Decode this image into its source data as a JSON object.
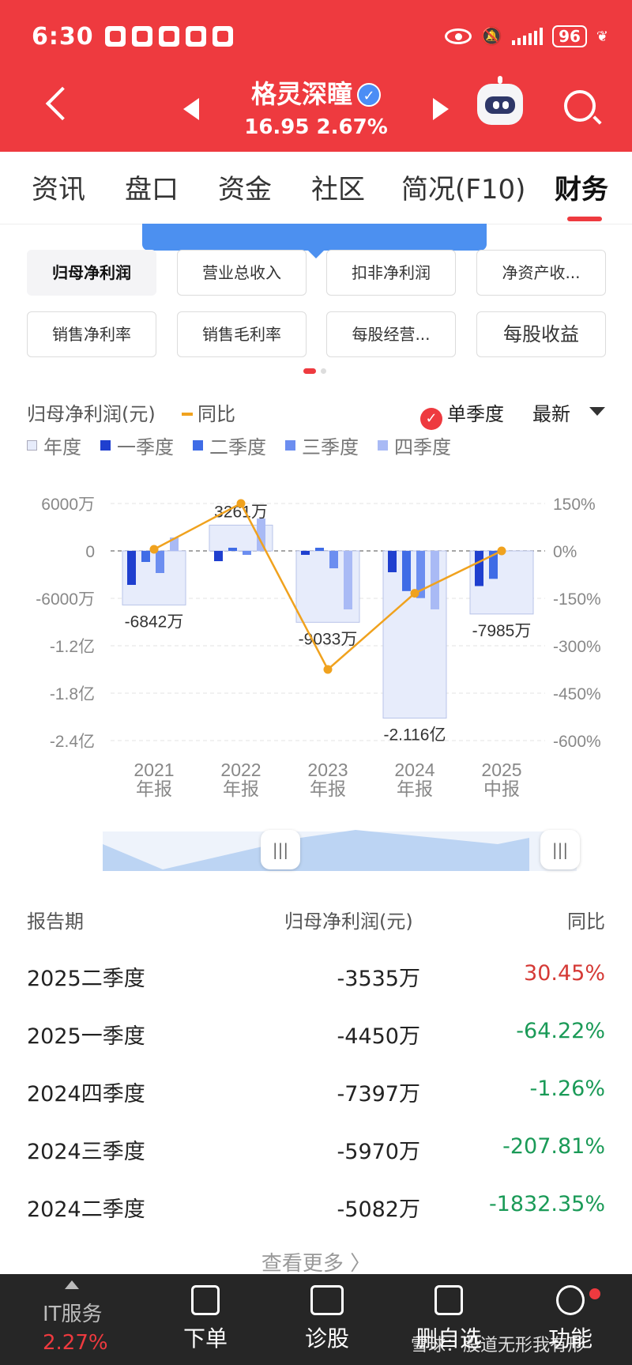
{
  "status_bar": {
    "time": "6:30",
    "battery": "96"
  },
  "header": {
    "stock_name": "格灵深瞳",
    "price": "16.95",
    "change_pct": "2.67%"
  },
  "tabs": [
    {
      "label": "资讯"
    },
    {
      "label": "盘口"
    },
    {
      "label": "资金"
    },
    {
      "label": "社区"
    },
    {
      "label": "简况(F10)"
    },
    {
      "label": "财务"
    }
  ],
  "metrics": [
    {
      "label": "归母净利润"
    },
    {
      "label": "营业总收入"
    },
    {
      "label": "扣非净利润"
    },
    {
      "label": "净资产收..."
    },
    {
      "label": "销售净利率"
    },
    {
      "label": "销售毛利率"
    },
    {
      "label": "每股经营..."
    },
    {
      "label": "每股收益"
    }
  ],
  "chart_header": {
    "title": "归母净利润(元)",
    "yoy_legend": "同比",
    "single_quarter": "单季度",
    "latest": "最新",
    "legend": [
      "年度",
      "一季度",
      "二季度",
      "三季度",
      "四季度"
    ]
  },
  "colors": {
    "annual": "#e7ecfb",
    "q1": "#1f3fcf",
    "q2": "#3f6ce6",
    "q3": "#6c8ef0",
    "q4": "#a9baf5",
    "yoy_line": "#f0a21e",
    "positive": "#d53a36",
    "negative": "#1a9a57",
    "brand": "#ee3a3f"
  },
  "chart_data": {
    "type": "bar",
    "categories": [
      "2021\n年报",
      "2022\n年报",
      "2023\n年报",
      "2024\n年报",
      "2025\n中报"
    ],
    "y_unit": "元",
    "ylim": [
      -240000000,
      60000000
    ],
    "y_ticks": [
      "6000万",
      "0",
      "-6000万",
      "-1.2亿",
      "-1.8亿",
      "-2.4亿"
    ],
    "y2_ticks": [
      "150%",
      "0%",
      "-150%",
      "-300%",
      "-450%",
      "-600%"
    ],
    "y2lim": [
      -600,
      150
    ],
    "series": [
      {
        "name": "年度",
        "values": [
          -68420000,
          32610000,
          -90330000,
          -211600000,
          -79850000
        ]
      },
      {
        "name": "一季度",
        "values": [
          -43000000,
          -13000000,
          -5000000,
          -27000000,
          -44500000
        ]
      },
      {
        "name": "二季度",
        "values": [
          -14000000,
          4000000,
          4000000,
          -50820000,
          -35350000
        ]
      },
      {
        "name": "三季度",
        "values": [
          -28000000,
          -5000000,
          -22000000,
          -59700000,
          null
        ]
      },
      {
        "name": "四季度",
        "values": [
          17000000,
          41000000,
          -74000000,
          -73970000,
          null
        ]
      },
      {
        "name": "同比",
        "values": [
          5,
          150,
          -375,
          -134,
          0
        ]
      }
    ],
    "data_labels": [
      "-6842万",
      "3261万",
      "-9033万",
      "-2.116亿",
      "-7985万"
    ],
    "grid": true,
    "legend_position": "top-left"
  },
  "table": {
    "headers": [
      "报告期",
      "归母净利润(元)",
      "同比"
    ],
    "rows": [
      {
        "period": "2025二季度",
        "value": "-3535万",
        "yoy": "30.45%",
        "sign": "pos"
      },
      {
        "period": "2025一季度",
        "value": "-4450万",
        "yoy": "-64.22%",
        "sign": "neg"
      },
      {
        "period": "2024四季度",
        "value": "-7397万",
        "yoy": "-1.26%",
        "sign": "neg"
      },
      {
        "period": "2024三季度",
        "value": "-5970万",
        "yoy": "-207.81%",
        "sign": "neg"
      },
      {
        "period": "2024二季度",
        "value": "-5082万",
        "yoy": "-1832.35%",
        "sign": "neg"
      }
    ],
    "more": "查看更多 〉"
  },
  "bottom_bar": {
    "sector_name": "IT服务",
    "sector_change": "2.27%",
    "items": [
      {
        "label": "下单",
        "icon": "order-icon"
      },
      {
        "label": "诊股",
        "icon": "diagnose-icon"
      },
      {
        "label": "删自选",
        "icon": "remove-watchlist-icon"
      },
      {
        "label": "功能",
        "icon": "menu-icon"
      }
    ],
    "watermark": "雪球：股道无形我有形"
  }
}
